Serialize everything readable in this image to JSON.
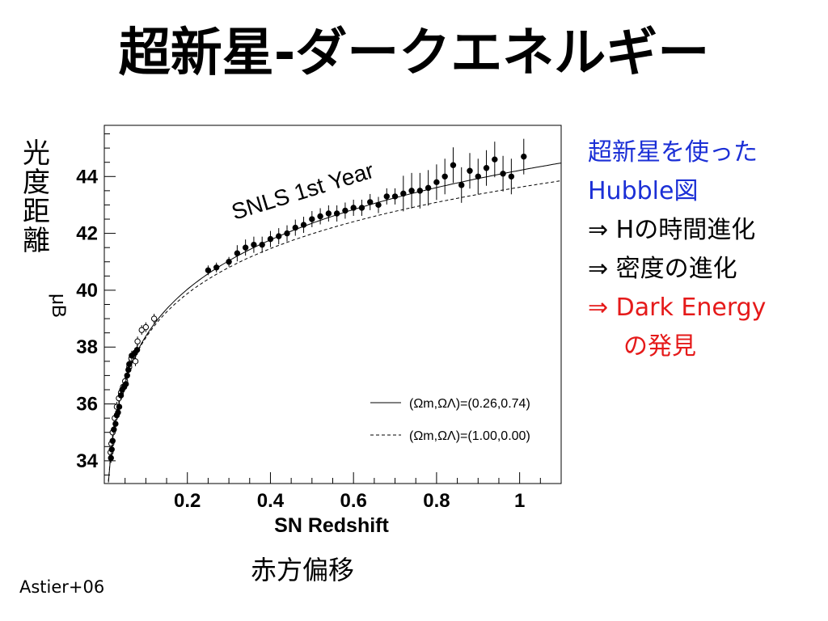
{
  "title": "超新星-ダークエネルギー",
  "ylabel_jp": [
    "光",
    "度",
    "距",
    "離"
  ],
  "xlabel_jp": "赤方偏移",
  "notes": {
    "line1": "超新星を使った",
    "line2": "Hubble図",
    "line3": "⇒ Hの時間進化",
    "line4": "⇒ 密度の進化",
    "line5": "⇒ Dark Energy",
    "line6": "の発見"
  },
  "credit": "Astier+06",
  "colors": {
    "notes_blue": "#1b2fd6",
    "notes_red": "#e51a1a"
  },
  "chart_data": {
    "type": "scatter",
    "title": "SNLS 1st Year",
    "xlabel": "SN Redshift",
    "ylabel": "μB",
    "xlim": [
      0,
      1.1
    ],
    "ylim": [
      33.2,
      45.8
    ],
    "xticks": [
      "0.2",
      "0.4",
      "0.6",
      "0.8",
      "1"
    ],
    "yticks": [
      "34",
      "36",
      "38",
      "40",
      "42",
      "44"
    ],
    "legend_position": "bottom-right",
    "legend": [
      {
        "label": "(Ωm,ΩΛ)=(0.26,0.74)",
        "style": "solid"
      },
      {
        "label": "(Ωm,ΩΛ)=(1.00,0.00)",
        "style": "dashed"
      }
    ],
    "series": [
      {
        "marker": "open-circle",
        "points": [
          [
            0.015,
            34.3
          ],
          [
            0.017,
            34.6
          ],
          [
            0.02,
            35.0
          ],
          [
            0.025,
            35.5
          ],
          [
            0.03,
            35.9
          ],
          [
            0.035,
            36.2
          ],
          [
            0.04,
            36.4
          ],
          [
            0.045,
            36.6
          ],
          [
            0.05,
            36.8
          ],
          [
            0.06,
            37.3
          ],
          [
            0.065,
            37.6
          ],
          [
            0.07,
            37.7
          ],
          [
            0.075,
            37.5
          ],
          [
            0.08,
            38.2
          ],
          [
            0.09,
            38.6
          ],
          [
            0.1,
            38.7
          ],
          [
            0.12,
            39.0
          ]
        ]
      },
      {
        "marker": "filled-circle",
        "points": [
          [
            0.016,
            34.1
          ],
          [
            0.018,
            34.4
          ],
          [
            0.02,
            34.7
          ],
          [
            0.023,
            35.1
          ],
          [
            0.027,
            35.3
          ],
          [
            0.03,
            35.6
          ],
          [
            0.033,
            35.7
          ],
          [
            0.036,
            35.9
          ],
          [
            0.04,
            36.3
          ],
          [
            0.043,
            36.5
          ],
          [
            0.048,
            36.6
          ],
          [
            0.052,
            36.7
          ],
          [
            0.055,
            37.0
          ],
          [
            0.058,
            37.2
          ],
          [
            0.06,
            37.4
          ],
          [
            0.066,
            37.7
          ],
          [
            0.074,
            37.8
          ],
          [
            0.079,
            37.9
          ],
          [
            0.25,
            40.7
          ],
          [
            0.27,
            40.8
          ],
          [
            0.3,
            41.0
          ],
          [
            0.32,
            41.3
          ],
          [
            0.34,
            41.5
          ],
          [
            0.36,
            41.6
          ],
          [
            0.38,
            41.6
          ],
          [
            0.4,
            41.8
          ],
          [
            0.42,
            41.9
          ],
          [
            0.44,
            42.0
          ],
          [
            0.46,
            42.2
          ],
          [
            0.48,
            42.3
          ],
          [
            0.5,
            42.5
          ],
          [
            0.52,
            42.6
          ],
          [
            0.54,
            42.7
          ],
          [
            0.56,
            42.7
          ],
          [
            0.58,
            42.8
          ],
          [
            0.6,
            42.9
          ],
          [
            0.62,
            42.9
          ],
          [
            0.64,
            43.1
          ],
          [
            0.66,
            43.0
          ],
          [
            0.68,
            43.3
          ],
          [
            0.7,
            43.3
          ],
          [
            0.72,
            43.4
          ],
          [
            0.74,
            43.5
          ],
          [
            0.76,
            43.5
          ],
          [
            0.78,
            43.6
          ],
          [
            0.8,
            43.8
          ],
          [
            0.82,
            44.0
          ],
          [
            0.84,
            44.4
          ],
          [
            0.86,
            43.7
          ],
          [
            0.88,
            44.2
          ],
          [
            0.9,
            44.0
          ],
          [
            0.92,
            44.3
          ],
          [
            0.94,
            44.6
          ],
          [
            0.96,
            44.1
          ],
          [
            0.98,
            44.0
          ],
          [
            1.01,
            44.7
          ]
        ]
      }
    ],
    "curves": [
      {
        "omega_m": 0.26,
        "omega_lambda": 0.74,
        "style": "solid"
      },
      {
        "omega_m": 1.0,
        "omega_lambda": 0.0,
        "style": "dashed"
      }
    ]
  }
}
